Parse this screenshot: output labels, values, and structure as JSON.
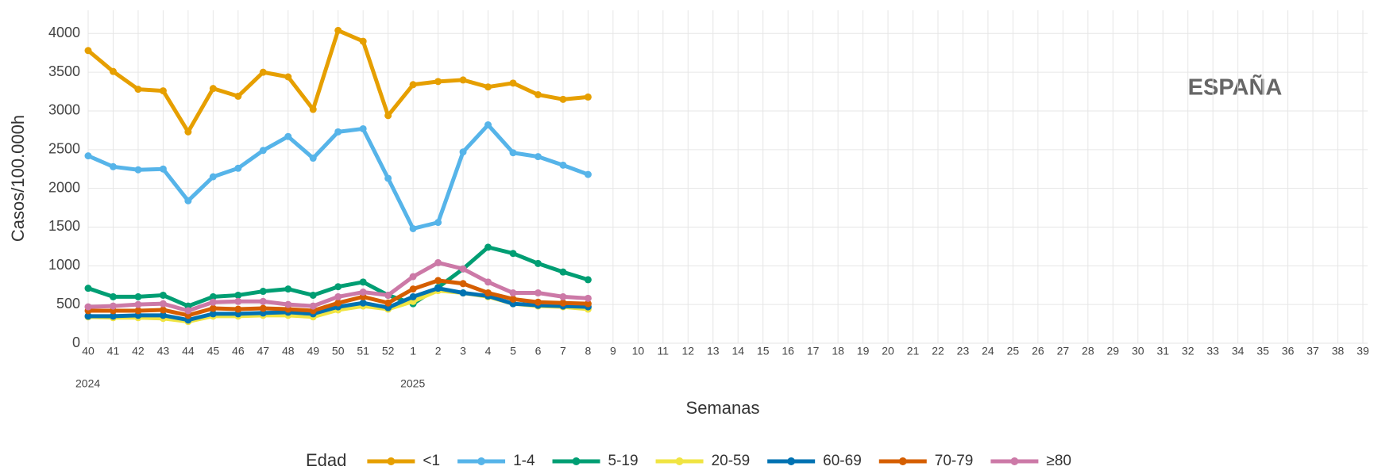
{
  "chart_data": {
    "type": "line",
    "annotation": "ESPAÑA",
    "x_label": "Semanas",
    "y_label": "Casos/100.000h",
    "legend_title": "Edad",
    "x_groups": [
      {
        "label": "2024",
        "start": "40"
      },
      {
        "label": "2025",
        "start": "1"
      }
    ],
    "categories": [
      "40",
      "41",
      "42",
      "43",
      "44",
      "45",
      "46",
      "47",
      "48",
      "49",
      "50",
      "51",
      "52",
      "1",
      "2",
      "3",
      "4",
      "5",
      "6",
      "7",
      "8",
      "9",
      "10",
      "11",
      "12",
      "13",
      "14",
      "15",
      "16",
      "17",
      "18",
      "19",
      "20",
      "21",
      "22",
      "23",
      "24",
      "25",
      "26",
      "27",
      "28",
      "29",
      "30",
      "31",
      "32",
      "33",
      "34",
      "35",
      "36",
      "37",
      "38",
      "39"
    ],
    "ylim": [
      0,
      4300
    ],
    "yticks": [
      0,
      500,
      1000,
      1500,
      2000,
      2500,
      3000,
      3500,
      4000
    ],
    "grid": true,
    "series": [
      {
        "name": "<1",
        "color": "#E69F00",
        "values": [
          3780,
          3510,
          3280,
          3260,
          2730,
          3290,
          3190,
          3500,
          3440,
          3020,
          4040,
          3900,
          2940,
          3340,
          3380,
          3400,
          3310,
          3360,
          3210,
          3150,
          3180,
          null,
          null,
          null,
          null,
          null,
          null,
          null,
          null,
          null,
          null,
          null,
          null,
          null,
          null,
          null,
          null,
          null,
          null,
          null,
          null,
          null,
          null,
          null,
          null,
          null,
          null,
          null,
          null,
          null,
          null,
          null
        ]
      },
      {
        "name": "1-4",
        "color": "#56B4E9",
        "values": [
          2420,
          2280,
          2240,
          2250,
          1840,
          2150,
          2260,
          2490,
          2670,
          2390,
          2730,
          2770,
          2130,
          1480,
          1560,
          2470,
          2820,
          2460,
          2410,
          2300,
          2180,
          null,
          null,
          null,
          null,
          null,
          null,
          null,
          null,
          null,
          null,
          null,
          null,
          null,
          null,
          null,
          null,
          null,
          null,
          null,
          null,
          null,
          null,
          null,
          null,
          null,
          null,
          null,
          null,
          null,
          null,
          null
        ]
      },
      {
        "name": "5-19",
        "color": "#009E73",
        "values": [
          710,
          600,
          600,
          620,
          480,
          600,
          620,
          670,
          700,
          620,
          730,
          790,
          620,
          510,
          720,
          960,
          1240,
          1160,
          1030,
          920,
          820,
          null,
          null,
          null,
          null,
          null,
          null,
          null,
          null,
          null,
          null,
          null,
          null,
          null,
          null,
          null,
          null,
          null,
          null,
          null,
          null,
          null,
          null,
          null,
          null,
          null,
          null,
          null,
          null,
          null,
          null,
          null
        ]
      },
      {
        "name": "20-59",
        "color": "#F0E442",
        "values": [
          340,
          330,
          330,
          320,
          280,
          350,
          350,
          360,
          360,
          340,
          430,
          480,
          440,
          540,
          680,
          650,
          600,
          510,
          480,
          470,
          440,
          null,
          null,
          null,
          null,
          null,
          null,
          null,
          null,
          null,
          null,
          null,
          null,
          null,
          null,
          null,
          null,
          null,
          null,
          null,
          null,
          null,
          null,
          null,
          null,
          null,
          null,
          null,
          null,
          null,
          null,
          null
        ]
      },
      {
        "name": "60-69",
        "color": "#0072B2",
        "values": [
          350,
          350,
          360,
          360,
          300,
          380,
          380,
          390,
          400,
          380,
          470,
          520,
          460,
          600,
          710,
          650,
          610,
          510,
          490,
          480,
          470,
          null,
          null,
          null,
          null,
          null,
          null,
          null,
          null,
          null,
          null,
          null,
          null,
          null,
          null,
          null,
          null,
          null,
          null,
          null,
          null,
          null,
          null,
          null,
          null,
          null,
          null,
          null,
          null,
          null,
          null,
          null
        ]
      },
      {
        "name": "70-79",
        "color": "#D55E00",
        "values": [
          420,
          420,
          420,
          430,
          360,
          450,
          440,
          450,
          440,
          420,
          520,
          600,
          520,
          700,
          810,
          770,
          650,
          570,
          530,
          520,
          510,
          null,
          null,
          null,
          null,
          null,
          null,
          null,
          null,
          null,
          null,
          null,
          null,
          null,
          null,
          null,
          null,
          null,
          null,
          null,
          null,
          null,
          null,
          null,
          null,
          null,
          null,
          null,
          null,
          null,
          null,
          null
        ]
      },
      {
        "name": "≥80",
        "color": "#CC79A7",
        "values": [
          470,
          480,
          500,
          510,
          420,
          530,
          540,
          540,
          500,
          480,
          600,
          660,
          620,
          860,
          1040,
          960,
          790,
          650,
          650,
          600,
          580,
          null,
          null,
          null,
          null,
          null,
          null,
          null,
          null,
          null,
          null,
          null,
          null,
          null,
          null,
          null,
          null,
          null,
          null,
          null,
          null,
          null,
          null,
          null,
          null,
          null,
          null,
          null,
          null,
          null,
          null,
          null
        ]
      }
    ]
  }
}
